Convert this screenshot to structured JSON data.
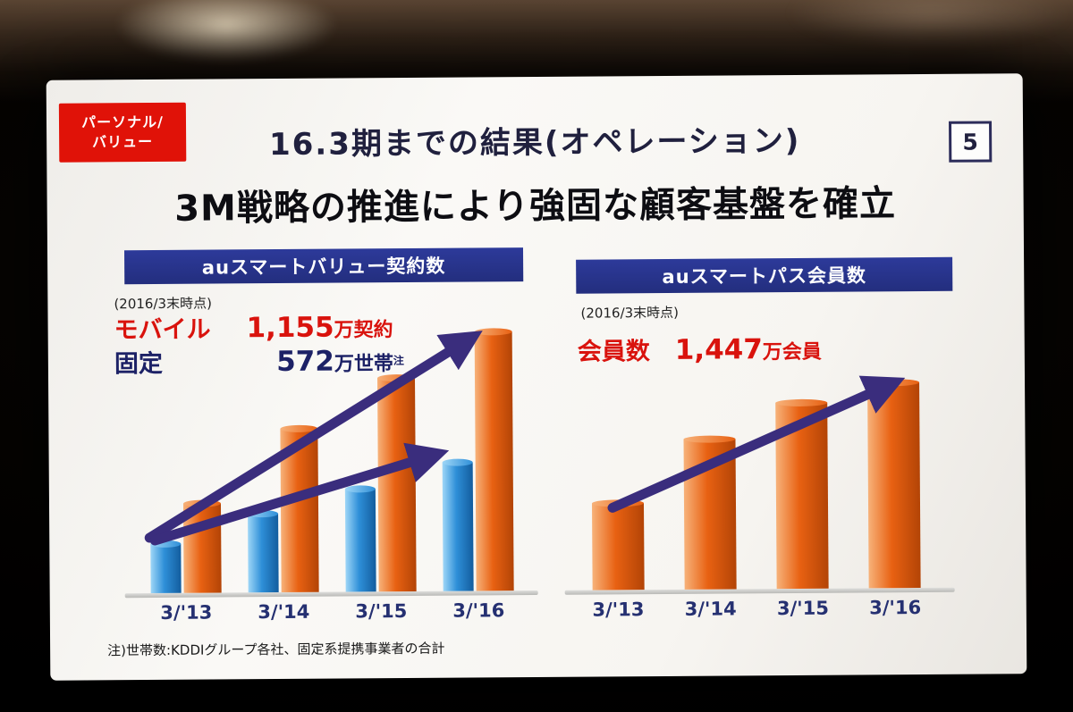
{
  "slide": {
    "badge_line1": "パーソナル/",
    "badge_line2": "バリュー",
    "title": "16.3期までの結果(オペレーション)",
    "page_number": "5",
    "heading": "3M戦略の推進により強固な顧客基盤を確立",
    "footnote": "注)世帯数:KDDIグループ各社、固定系提携事業者の合計"
  },
  "left_panel": {
    "header": "auスマートバリュー契約数",
    "as_of": "(2016/3末時点)",
    "mobile_label": "モバイル",
    "mobile_value": "1,155",
    "mobile_unit": "万契約",
    "fixed_label": "固定",
    "fixed_value": "572",
    "fixed_unit": "万世帯",
    "fixed_note": "注"
  },
  "right_panel": {
    "header": "auスマートパス会員数",
    "as_of": "(2016/3末時点)",
    "members_label": "会員数",
    "members_value": "1,447",
    "members_unit": "万会員"
  },
  "chart_data": [
    {
      "type": "bar",
      "title": "auスマートバリュー契約数",
      "categories": [
        "3/'13",
        "3/'14",
        "3/'15",
        "3/'16"
      ],
      "series": [
        {
          "name": "固定(万世帯)",
          "values": [
            220,
            350,
            460,
            572
          ],
          "color": "#2e8fd8",
          "gradient": [
            "#9ed6f7",
            "#2e8fd8",
            "#135d9e"
          ]
        },
        {
          "name": "モバイル(万契約)",
          "values": [
            400,
            730,
            950,
            1155
          ],
          "color": "#e86112",
          "gradient": [
            "#f7b27a",
            "#e86112",
            "#b34406"
          ]
        }
      ],
      "ylim": [
        0,
        1200
      ],
      "unit": "万",
      "legend": "none",
      "annotations": [
        "モバイル 1,155万契約",
        "固定 572万世帯(注)"
      ]
    },
    {
      "type": "bar",
      "title": "auスマートパス会員数",
      "categories": [
        "3/'13",
        "3/'14",
        "3/'15",
        "3/'16"
      ],
      "series": [
        {
          "name": "会員数(万会員)",
          "values": [
            610,
            1060,
            1310,
            1447
          ],
          "color": "#e86112",
          "gradient": [
            "#f7b27a",
            "#e86112",
            "#b34406"
          ]
        }
      ],
      "ylim": [
        0,
        1500
      ],
      "unit": "万",
      "legend": "none",
      "annotations": [
        "会員数 1,447万会員"
      ]
    }
  ],
  "colors": {
    "accent_red": "#d9130d",
    "header_blue": "#27338f",
    "arrow_purple": "#3a2d7d",
    "label_navy": "#253071"
  }
}
